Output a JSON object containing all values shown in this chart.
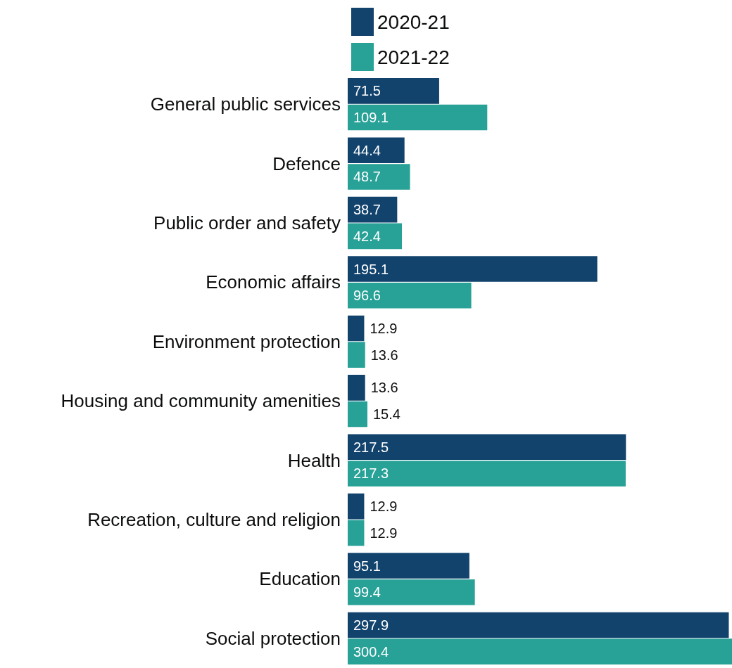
{
  "chart_data": {
    "type": "bar",
    "orientation": "horizontal",
    "categories": [
      "General public services",
      "Defence",
      "Public order and safety",
      "Economic affairs",
      "Environment protection",
      "Housing and community amenities",
      "Health",
      "Recreation, culture and religion",
      "Education",
      "Social protection"
    ],
    "series": [
      {
        "name": "2020-21",
        "color": "#12436d",
        "values": [
          71.5,
          44.4,
          38.7,
          195.1,
          12.9,
          13.6,
          217.5,
          12.9,
          95.1,
          297.9
        ]
      },
      {
        "name": "2021-22",
        "color": "#28a197",
        "values": [
          109.1,
          48.7,
          42.4,
          96.6,
          13.6,
          15.4,
          217.3,
          12.9,
          99.4,
          300.4
        ]
      }
    ],
    "data_labels": true,
    "legend": "top left",
    "tick_labels": "y"
  }
}
